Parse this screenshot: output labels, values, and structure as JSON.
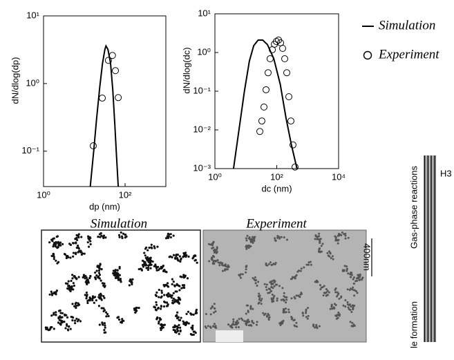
{
  "chart_data": [
    {
      "type": "line",
      "xlabel": "dp (nm)",
      "ylabel": "dN/dlog(dp)",
      "log_x": true,
      "log_y": true,
      "xlim": [
        1,
        1000
      ],
      "ylim": [
        0.03,
        10
      ],
      "xticks": [
        {
          "value": 1,
          "label": "10⁰"
        },
        {
          "value": 100,
          "label": "10²"
        }
      ],
      "yticks": [
        {
          "value": 0.1,
          "label": "10⁻¹"
        },
        {
          "value": 1,
          "label": "10⁰"
        },
        {
          "value": 10,
          "label": "10¹"
        }
      ],
      "series": [
        {
          "name": "Simulation",
          "kind": "line",
          "color": "#000000",
          "x": [
            14,
            17,
            20,
            24,
            28,
            32,
            34,
            38,
            44,
            50,
            56,
            62,
            68
          ],
          "values": [
            0.03,
            0.1,
            0.3,
            0.9,
            2,
            3.2,
            3.6,
            3.2,
            2,
            0.8,
            0.25,
            0.08,
            0.03
          ]
        },
        {
          "name": "Experiment",
          "kind": "scatter",
          "color": "#000000",
          "x": [
            16.6,
            27.6,
            39,
            49,
            58,
            68
          ],
          "values": [
            0.12,
            0.61,
            2.2,
            2.6,
            1.55,
            0.62
          ]
        }
      ]
    },
    {
      "type": "line",
      "xlabel": "dc (nm)",
      "ylabel": "dN/dlog(dc)",
      "log_x": true,
      "log_y": true,
      "xlim": [
        1,
        10000
      ],
      "ylim": [
        0.001,
        10
      ],
      "xticks": [
        {
          "value": 1,
          "label": "10⁰"
        },
        {
          "value": 100,
          "label": "10²"
        },
        {
          "value": 10000,
          "label": "10⁴"
        }
      ],
      "yticks": [
        {
          "value": 0.001,
          "label": "10⁻³"
        },
        {
          "value": 0.01,
          "label": "10⁻²"
        },
        {
          "value": 0.1,
          "label": "10⁻¹"
        },
        {
          "value": 1,
          "label": "10⁰"
        },
        {
          "value": 10,
          "label": "10¹"
        }
      ],
      "series": [
        {
          "name": "Simulation",
          "kind": "line",
          "color": "#000000",
          "x": [
            4,
            6,
            9,
            13,
            18,
            25,
            35,
            50,
            80,
            130,
            200,
            300,
            450
          ],
          "values": [
            0.001,
            0.01,
            0.1,
            0.6,
            1.5,
            2.1,
            2.1,
            1.6,
            0.7,
            0.15,
            0.02,
            0.004,
            0.001
          ]
        },
        {
          "name": "Experiment",
          "kind": "scatter",
          "color": "#000000",
          "x": [
            28.4,
            33,
            38.6,
            45,
            52.5,
            61,
            72,
            84,
            97,
            114,
            133,
            155,
            181,
            211,
            246,
            287,
            335,
            390
          ],
          "values": [
            0.0091,
            0.017,
            0.039,
            0.109,
            0.3,
            0.69,
            1.18,
            1.64,
            1.93,
            2.1,
            1.78,
            1.28,
            0.69,
            0.3,
            0.072,
            0.017,
            0.0041,
            0.0011
          ]
        }
      ]
    }
  ],
  "panels": {
    "simulation_caption": "Simulation",
    "experiment_caption": "Experiment",
    "scale_label": "400nm",
    "side_label": "Gas-phase reactions",
    "side_species": "H3",
    "side_label_2": "le formation"
  }
}
